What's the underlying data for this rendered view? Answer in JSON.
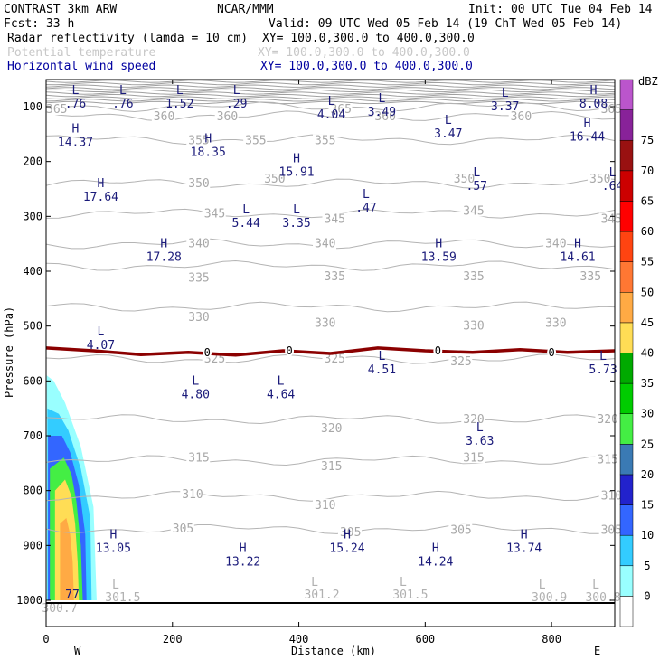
{
  "header": {
    "left1": "CONTRAST  3km ARW",
    "center1": "NCAR/MMM",
    "right1": "Init: 00 UTC Tue 04 Feb 14",
    "left2": "Fcst:    33 h",
    "right2": "Valid: 09 UTC Wed 05 Feb 14 (19 ChT Wed 05 Feb 14)",
    "fields": [
      {
        "name": "Radar reflectivity (lamda = 10 cm)",
        "xy": "XY= 100.0,300.0 to 400.0,300.0",
        "style": "black"
      },
      {
        "name": "Potential temperature",
        "xy": "XY= 100.0,300.0 to 400.0,300.0",
        "style": "gray"
      },
      {
        "name": "Horizontal wind speed",
        "xy": "XY= 100.0,300.0 to 400.0,300.0",
        "style": "blue"
      }
    ]
  },
  "colors": {
    "theta": "#b4b4b4",
    "wind_label": "#1a1a7a",
    "freezing": "#8b0000",
    "dbz_scale": [
      "#ffffff",
      "#99ffff",
      "#33ccff",
      "#3366ff",
      "#2222cc",
      "#3a7ab4",
      "#44ee44",
      "#00cc00",
      "#00aa00",
      "#ffdd55",
      "#ffaa44",
      "#ff7733",
      "#ff4411",
      "#ff0000",
      "#cc0000",
      "#991111",
      "#882299",
      "#bb55cc",
      "#dd99dd"
    ]
  },
  "chart_data": {
    "type": "cross-section",
    "xlabel": "Distance (km)",
    "ylabel": "Pressure (hPa)",
    "xlim": [
      0,
      900
    ],
    "ylim": [
      1000,
      50
    ],
    "x_ticks": [
      0,
      200,
      400,
      600,
      800
    ],
    "y_ticks": [
      100,
      200,
      300,
      400,
      500,
      600,
      700,
      800,
      900,
      1000
    ],
    "end_labels": {
      "left": "W",
      "right": "E"
    },
    "colorbar": {
      "unit": "dBZ",
      "levels": [
        0,
        5,
        10,
        15,
        20,
        25,
        30,
        35,
        40,
        45,
        50,
        55,
        60,
        65,
        70,
        75
      ]
    },
    "theta_contours": [
      {
        "value": 305,
        "p": 870
      },
      {
        "value": 310,
        "p": 810
      },
      {
        "value": 315,
        "p": 745
      },
      {
        "value": 320,
        "p": 670
      },
      {
        "value": 325,
        "p": 560
      },
      {
        "value": 330,
        "p": 465
      },
      {
        "value": 335,
        "p": 390
      },
      {
        "value": 340,
        "p": 350
      },
      {
        "value": 345,
        "p": 295
      },
      {
        "value": 350,
        "p": 240
      },
      {
        "value": 355,
        "p": 160
      },
      {
        "value": 360,
        "p": 117
      },
      {
        "value": 365,
        "p": 100
      }
    ],
    "theta_labels": [
      {
        "text": "305",
        "x": 200,
        "p": 870
      },
      {
        "text": "305",
        "x": 465,
        "p": 876
      },
      {
        "text": "305",
        "x": 640,
        "p": 872
      },
      {
        "text": "305",
        "x": 878,
        "p": 872
      },
      {
        "text": "310",
        "x": 215,
        "p": 807
      },
      {
        "text": "310",
        "x": 425,
        "p": 827
      },
      {
        "text": "310",
        "x": 878,
        "p": 810
      },
      {
        "text": "315",
        "x": 225,
        "p": 740
      },
      {
        "text": "315",
        "x": 435,
        "p": 756
      },
      {
        "text": "315",
        "x": 660,
        "p": 740
      },
      {
        "text": "315",
        "x": 872,
        "p": 744
      },
      {
        "text": "320",
        "x": 435,
        "p": 687
      },
      {
        "text": "320",
        "x": 660,
        "p": 670
      },
      {
        "text": "320",
        "x": 872,
        "p": 670
      },
      {
        "text": "325",
        "x": 250,
        "p": 560
      },
      {
        "text": "325",
        "x": 440,
        "p": 560
      },
      {
        "text": "325",
        "x": 640,
        "p": 565
      },
      {
        "text": "330",
        "x": 225,
        "p": 484
      },
      {
        "text": "330",
        "x": 425,
        "p": 495
      },
      {
        "text": "330",
        "x": 660,
        "p": 500
      },
      {
        "text": "330",
        "x": 790,
        "p": 495
      },
      {
        "text": "335",
        "x": 225,
        "p": 412
      },
      {
        "text": "335",
        "x": 440,
        "p": 410
      },
      {
        "text": "335",
        "x": 660,
        "p": 410
      },
      {
        "text": "335",
        "x": 845,
        "p": 410
      },
      {
        "text": "340",
        "x": 225,
        "p": 350
      },
      {
        "text": "340",
        "x": 425,
        "p": 350
      },
      {
        "text": "340",
        "x": 790,
        "p": 350
      },
      {
        "text": "345",
        "x": 250,
        "p": 295
      },
      {
        "text": "345",
        "x": 440,
        "p": 305
      },
      {
        "text": "345",
        "x": 660,
        "p": 290
      },
      {
        "text": "345",
        "x": 878,
        "p": 305
      },
      {
        "text": "350",
        "x": 225,
        "p": 240
      },
      {
        "text": "350",
        "x": 345,
        "p": 232
      },
      {
        "text": "350",
        "x": 645,
        "p": 232
      },
      {
        "text": "350",
        "x": 860,
        "p": 232
      },
      {
        "text": "355",
        "x": 225,
        "p": 162
      },
      {
        "text": "355",
        "x": 315,
        "p": 162
      },
      {
        "text": "355",
        "x": 425,
        "p": 162
      },
      {
        "text": "360",
        "x": 170,
        "p": 118
      },
      {
        "text": "360",
        "x": 270,
        "p": 118
      },
      {
        "text": "360",
        "x": 520,
        "p": 118
      },
      {
        "text": "360",
        "x": 735,
        "p": 118
      },
      {
        "text": "365",
        "x": 0,
        "p": 105
      },
      {
        "text": "365",
        "x": 450,
        "p": 105
      },
      {
        "text": "365",
        "x": 878,
        "p": 105
      }
    ],
    "wind_extrema": [
      {
        "type": "L",
        "value": ".76",
        "x": 35,
        "p": 80
      },
      {
        "type": "L",
        "value": ".76",
        "x": 110,
        "p": 80
      },
      {
        "type": "L",
        "value": "1.52",
        "x": 200,
        "p": 80
      },
      {
        "type": "L",
        "value": ".29",
        "x": 290,
        "p": 80
      },
      {
        "type": "L",
        "value": "4.04",
        "x": 440,
        "p": 100
      },
      {
        "type": "L",
        "value": "3.49",
        "x": 520,
        "p": 95
      },
      {
        "type": "L",
        "value": "3.37",
        "x": 715,
        "p": 85
      },
      {
        "type": "H",
        "value": "8.08",
        "x": 855,
        "p": 80
      },
      {
        "type": "H",
        "value": "14.37",
        "x": 35,
        "p": 150
      },
      {
        "type": "H",
        "value": "18.35",
        "x": 245,
        "p": 168
      },
      {
        "type": "L",
        "value": "3.47",
        "x": 625,
        "p": 135
      },
      {
        "type": "H",
        "value": "16.44",
        "x": 845,
        "p": 140
      },
      {
        "type": "H",
        "value": "15.91",
        "x": 385,
        "p": 205
      },
      {
        "type": "H",
        "value": "17.64",
        "x": 75,
        "p": 250
      },
      {
        "type": "L",
        "value": ".57",
        "x": 670,
        "p": 230
      },
      {
        "type": "L",
        "value": ".64",
        "x": 885,
        "p": 230
      },
      {
        "type": "L",
        "value": ".47",
        "x": 495,
        "p": 270
      },
      {
        "type": "L",
        "value": "5.44",
        "x": 305,
        "p": 298
      },
      {
        "type": "L",
        "value": "3.35",
        "x": 385,
        "p": 298
      },
      {
        "type": "H",
        "value": "17.28",
        "x": 175,
        "p": 360
      },
      {
        "type": "H",
        "value": "13.59",
        "x": 610,
        "p": 360
      },
      {
        "type": "H",
        "value": "14.61",
        "x": 830,
        "p": 360
      },
      {
        "type": "L",
        "value": "4.07",
        "x": 75,
        "p": 520
      },
      {
        "type": "L",
        "value": "4.51",
        "x": 520,
        "p": 565
      },
      {
        "type": "L",
        "value": "5.73",
        "x": 870,
        "p": 565
      },
      {
        "type": "L",
        "value": "4.80",
        "x": 225,
        "p": 610
      },
      {
        "type": "L",
        "value": "4.64",
        "x": 360,
        "p": 610
      },
      {
        "type": "L",
        "value": "3.63",
        "x": 675,
        "p": 695
      },
      {
        "type": "H",
        "value": "13.05",
        "x": 95,
        "p": 890
      },
      {
        "type": "H",
        "value": "15.24",
        "x": 465,
        "p": 890
      },
      {
        "type": "H",
        "value": "13.74",
        "x": 745,
        "p": 890
      },
      {
        "type": "H",
        "value": "13.22",
        "x": 300,
        "p": 915
      },
      {
        "type": "H",
        "value": "14.24",
        "x": 605,
        "p": 915
      },
      {
        "type": "",
        "value": "77",
        "x": 30,
        "p": 975
      }
    ],
    "theta_extrema": [
      {
        "type": "L",
        "value": "301.5",
        "x": 110,
        "p": 985
      },
      {
        "type": "L",
        "value": "301.2",
        "x": 425,
        "p": 980
      },
      {
        "type": "L",
        "value": "301.5",
        "x": 565,
        "p": 980
      },
      {
        "type": "L",
        "value": "300.9",
        "x": 785,
        "p": 985
      },
      {
        "type": "L",
        "value": "300.8",
        "x": 870,
        "p": 985
      },
      {
        "type": "",
        "value": "300.7",
        "x": 10,
        "p": 1005
      }
    ],
    "freezing_level": {
      "value": "0",
      "p": [
        540,
        545,
        552,
        548,
        553,
        545,
        550,
        540,
        545,
        548,
        543,
        548,
        545
      ],
      "x": [
        0,
        75,
        150,
        225,
        300,
        375,
        450,
        525,
        600,
        675,
        750,
        825,
        900
      ]
    },
    "freezing_markers": [
      {
        "x": 255
      },
      {
        "x": 385
      },
      {
        "x": 620
      },
      {
        "x": 800
      }
    ]
  }
}
